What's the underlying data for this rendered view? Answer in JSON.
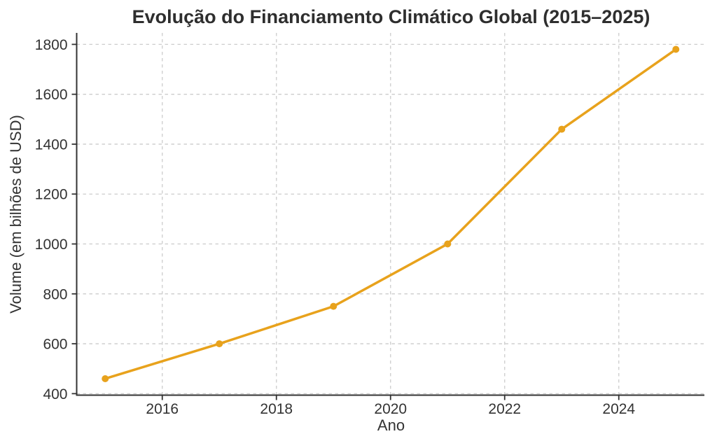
{
  "chart_data": {
    "type": "line",
    "title": "Evolução do Financiamento Climático Global (2015–2025)",
    "xlabel": "Ano",
    "ylabel": "Volume (em bilhões de USD)",
    "x": [
      2015,
      2017,
      2019,
      2021,
      2023,
      2025
    ],
    "y": [
      460,
      600,
      750,
      1000,
      1460,
      1780
    ],
    "xticks": [
      2016,
      2018,
      2020,
      2022,
      2024
    ],
    "yticks": [
      400,
      600,
      800,
      1000,
      1200,
      1400,
      1600,
      1800
    ],
    "xlim": [
      2014.5,
      2025.5
    ],
    "ylim": [
      394,
      1846
    ],
    "grid": true,
    "grid_style": "dashed",
    "legend": false,
    "marker": "circle",
    "line_color": "#E8A21C",
    "grid_color": "#cccccc",
    "spine_color": "#333333",
    "tick_label_color": "#333333",
    "title_color": "#2e2e2e",
    "background": "#ffffff"
  }
}
